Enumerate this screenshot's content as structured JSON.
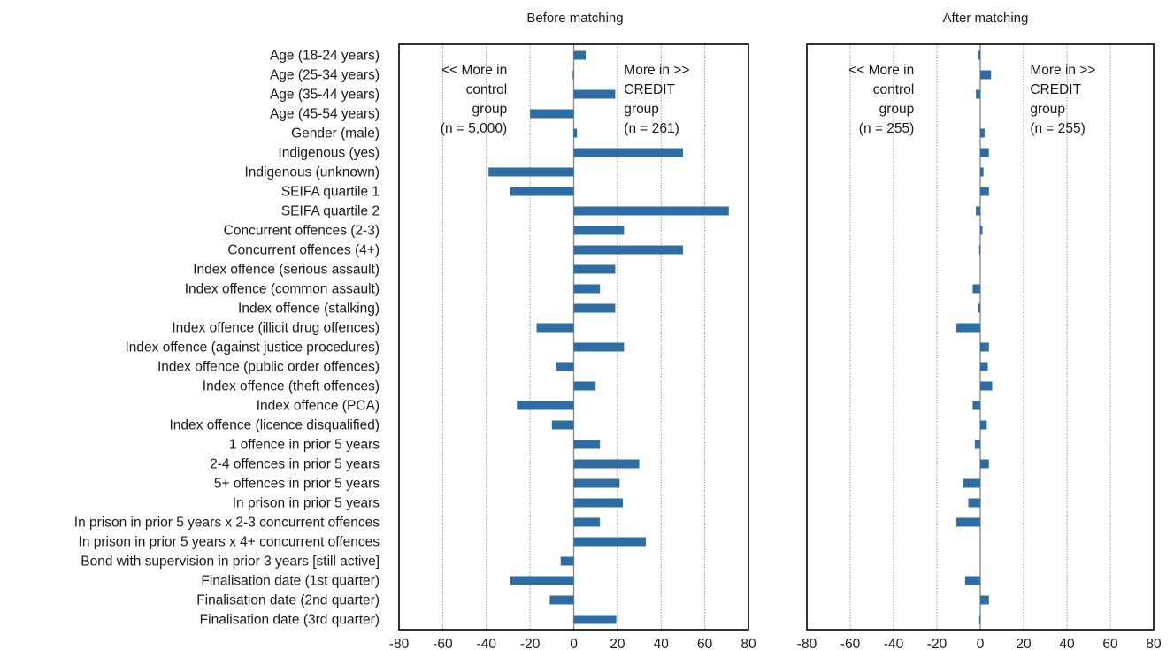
{
  "chart_data": {
    "type": "bar",
    "orientation": "horizontal",
    "categories": [
      "Age (18-24 years)",
      "Age (25-34 years)",
      "Age (35-44 years)",
      "Age (45-54 years)",
      "Gender (male)",
      "Indigenous (yes)",
      "Indigenous (unknown)",
      "SEIFA quartile 1",
      "SEIFA quartile 2",
      "Concurrent offences (2-3)",
      "Concurrent offences (4+)",
      "Index offence (serious assault)",
      "Index offence (common assault)",
      "Index offence (stalking)",
      "Index offence (illicit drug offences)",
      "Index offence (against justice procedures)",
      "Index offence (public order offences)",
      "Index offence (theft offences)",
      "Index offence (PCA)",
      "Index offence (licence disqualified)",
      "1 offence in prior 5 years",
      "2-4 offences in prior 5 years",
      "5+ offences in prior 5 years",
      "In prison in prior 5 years",
      "In prison in prior 5 years x 2-3 concurrent offences",
      "In prison in prior 5 years x 4+ concurrent offences",
      "Bond with supervision in prior 3 years [still active]",
      "Finalisation date (1st quarter)",
      "Finalisation date (2nd quarter)",
      "Finalisation date (3rd quarter)"
    ],
    "xlim": [
      -80,
      80
    ],
    "xticks": [
      "-80",
      "-60",
      "-40",
      "-20",
      "0",
      "20",
      "40",
      "60",
      "80"
    ],
    "grid": true,
    "panels": [
      {
        "title": "Before matching",
        "annotation_left": [
          "<< More in",
          "control",
          "group",
          "(n = 5,000)"
        ],
        "annotation_right": [
          "More in >>",
          "CREDIT",
          "group",
          "(n = 261)"
        ],
        "values": [
          5.5,
          -0.5,
          19,
          -20,
          1.5,
          50,
          -39,
          -29,
          71,
          23,
          50,
          19,
          12,
          19,
          -17,
          23,
          -8,
          10,
          -26,
          -10,
          12,
          30,
          21,
          22.5,
          12,
          33,
          -6,
          -29,
          -11,
          19.5
        ]
      },
      {
        "title": "After matching",
        "annotation_left": [
          "<< More in",
          "control",
          "group",
          "(n = 255)"
        ],
        "annotation_right": [
          "More in >>",
          "CREDIT",
          "group",
          "(n = 255)"
        ],
        "values": [
          -1,
          5,
          -2,
          0,
          2,
          4,
          1.5,
          4,
          -2,
          1,
          -0.5,
          0,
          -3.5,
          -1,
          -11,
          4,
          3.5,
          5.5,
          -3.5,
          3,
          -2.5,
          4,
          -8,
          -5.5,
          -11,
          0,
          0,
          -7,
          4,
          -0.5
        ]
      }
    ]
  }
}
